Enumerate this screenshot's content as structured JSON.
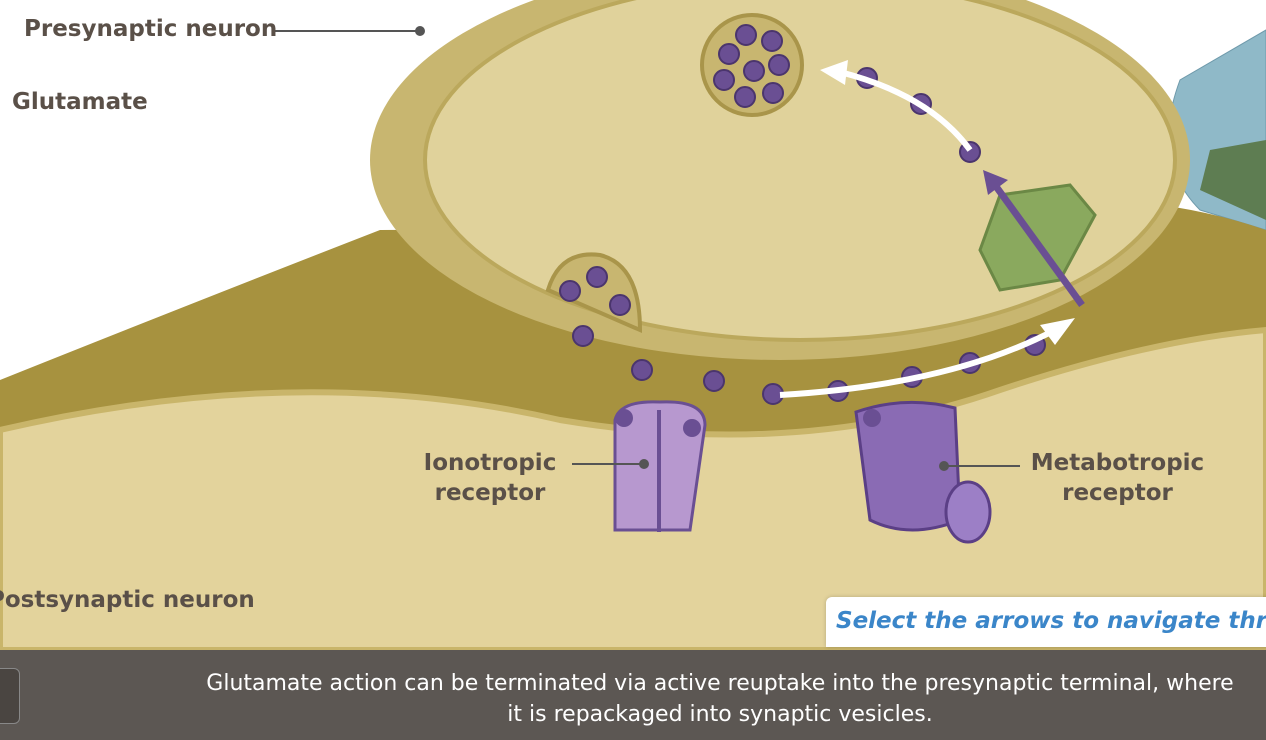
{
  "labels": {
    "presynaptic": "Presynaptic neuron",
    "glutamate": "Glutamate",
    "ionotropic": "Ionotropic receptor",
    "metabotropic": "Metabotropic receptor",
    "postsynaptic": "Postsynaptic neuron"
  },
  "instruction": "Select the arrows to navigate throu",
  "caption": "Glutamate action can be terminated via active reuptake into the presynaptic terminal, where it is repackaged into synaptic vesicles."
}
